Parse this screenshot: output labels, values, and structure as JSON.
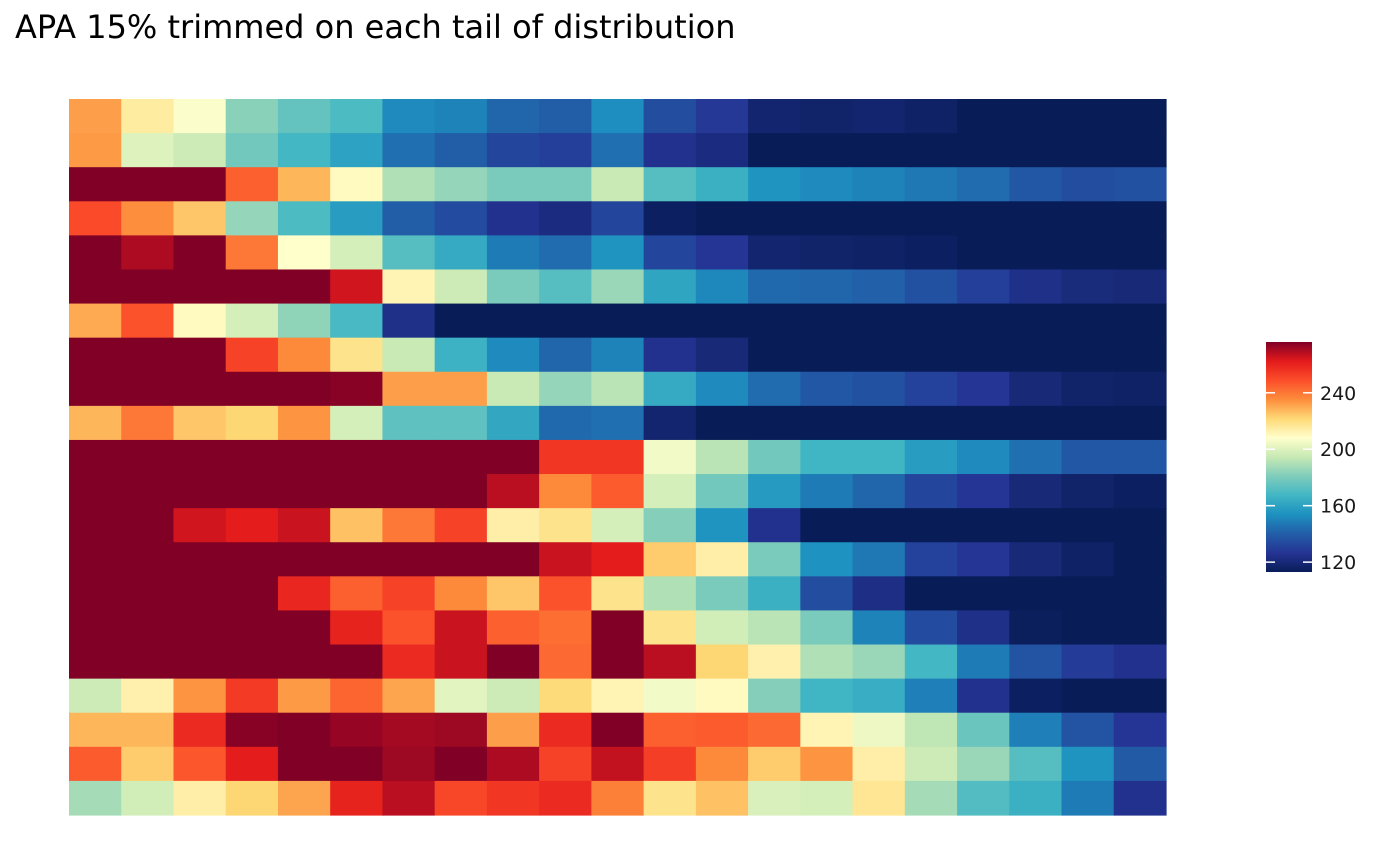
{
  "chart_data": {
    "type": "heatmap",
    "title": "APA 15% trimmed on each tail of distribution",
    "xlabel": "",
    "ylabel": "",
    "n_cols": 21,
    "n_rows": 21,
    "color_scale": {
      "name": "Spectral (reversed)",
      "limits": [
        113,
        276
      ],
      "stops": [
        "#081d58",
        "#253494",
        "#225ea8",
        "#1d91c0",
        "#41b6c4",
        "#7fcdbb",
        "#c7e9b4",
        "#ffffcc",
        "#fed976",
        "#fd8d3c",
        "#fc4e2a",
        "#e31a1c",
        "#800026"
      ],
      "legend_ticks": [
        120,
        160,
        200,
        240
      ],
      "legend_tick_labels": [
        "120",
        "160",
        "200",
        "240"
      ],
      "legend_position": "right"
    },
    "grid": false,
    "rows": [
      [
        232,
        215,
        207,
        183,
        175,
        170,
        152,
        150,
        142,
        140,
        153,
        135,
        128,
        118,
        117,
        118,
        116,
        113,
        113,
        113,
        113
      ],
      [
        233,
        200,
        196,
        178,
        168,
        160,
        145,
        140,
        132,
        130,
        145,
        125,
        122,
        113,
        113,
        113,
        113,
        113,
        113,
        113,
        113
      ],
      [
        276,
        276,
        276,
        245,
        228,
        210,
        190,
        185,
        180,
        180,
        195,
        172,
        165,
        155,
        152,
        150,
        147,
        144,
        138,
        135,
        136
      ],
      [
        250,
        235,
        225,
        185,
        170,
        158,
        140,
        134,
        125,
        122,
        132,
        115,
        113,
        113,
        113,
        113,
        113,
        113,
        113,
        113,
        113
      ],
      [
        276,
        270,
        276,
        240,
        208,
        198,
        172,
        163,
        148,
        144,
        155,
        132,
        127,
        118,
        117,
        116,
        115,
        113,
        113,
        113,
        113
      ],
      [
        276,
        276,
        276,
        276,
        276,
        265,
        212,
        196,
        180,
        172,
        186,
        161,
        151,
        143,
        142,
        141,
        136,
        130,
        124,
        121,
        120
      ],
      [
        230,
        248,
        210,
        198,
        184,
        169,
        124,
        113,
        113,
        113,
        113,
        113,
        113,
        113,
        113,
        113,
        113,
        113,
        113,
        113,
        113
      ],
      [
        276,
        276,
        276,
        252,
        236,
        218,
        195,
        166,
        152,
        142,
        150,
        125,
        120,
        113,
        113,
        113,
        113,
        113,
        113,
        113,
        113
      ],
      [
        276,
        276,
        276,
        276,
        276,
        275,
        232,
        232,
        195,
        185,
        192,
        163,
        152,
        144,
        138,
        136,
        131,
        127,
        120,
        117,
        116
      ],
      [
        228,
        240,
        225,
        222,
        234,
        198,
        174,
        174,
        162,
        143,
        145,
        118,
        113,
        113,
        113,
        113,
        113,
        113,
        113,
        113,
        113
      ],
      [
        276,
        276,
        276,
        276,
        276,
        276,
        276,
        276,
        276,
        255,
        255,
        205,
        192,
        178,
        167,
        167,
        158,
        152,
        145,
        138,
        138
      ],
      [
        276,
        276,
        276,
        276,
        276,
        276,
        276,
        276,
        268,
        236,
        246,
        198,
        178,
        157,
        148,
        142,
        132,
        127,
        120,
        117,
        115
      ],
      [
        276,
        276,
        265,
        262,
        266,
        226,
        240,
        252,
        214,
        218,
        198,
        182,
        155,
        125,
        113,
        113,
        113,
        113,
        113,
        113,
        113
      ],
      [
        276,
        276,
        276,
        276,
        276,
        276,
        276,
        276,
        276,
        266,
        262,
        224,
        214,
        180,
        154,
        147,
        131,
        127,
        120,
        116,
        113
      ],
      [
        276,
        276,
        276,
        276,
        259,
        245,
        252,
        236,
        225,
        248,
        218,
        190,
        180,
        165,
        135,
        123,
        113,
        113,
        113,
        113,
        113
      ],
      [
        276,
        276,
        276,
        276,
        276,
        260,
        248,
        266,
        245,
        242,
        276,
        218,
        197,
        192,
        180,
        150,
        134,
        124,
        114,
        113,
        113
      ],
      [
        276,
        276,
        276,
        276,
        276,
        276,
        258,
        266,
        276,
        243,
        276,
        268,
        222,
        213,
        190,
        186,
        168,
        148,
        137,
        129,
        125
      ],
      [
        196,
        213,
        234,
        254,
        233,
        244,
        231,
        201,
        196,
        221,
        212,
        205,
        210,
        182,
        167,
        164,
        149,
        125,
        115,
        113,
        113
      ],
      [
        228,
        228,
        258,
        275,
        276,
        273,
        271,
        272,
        232,
        258,
        276,
        245,
        246,
        243,
        212,
        204,
        193,
        176,
        149,
        137,
        127
      ],
      [
        246,
        224,
        247,
        262,
        276,
        276,
        272,
        276,
        270,
        252,
        267,
        253,
        236,
        224,
        234,
        214,
        196,
        186,
        172,
        155,
        139
      ],
      [
        188,
        197,
        214,
        222,
        231,
        260,
        268,
        251,
        255,
        258,
        238,
        218,
        226,
        199,
        198,
        217,
        188,
        171,
        165,
        148,
        125
      ]
    ]
  }
}
